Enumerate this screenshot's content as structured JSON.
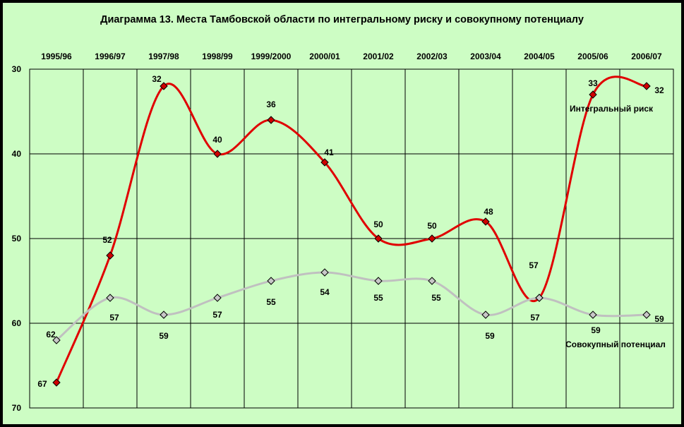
{
  "page_title": "Диаграмма 13. Места Тамбовской области  по интегральному риску и совокупному потенциалу",
  "colors": {
    "background": "#cdfdc4",
    "risk_line": "#e00000",
    "potential_line": "#c0c0c0",
    "grid": "#000000"
  },
  "chart_data": {
    "type": "line",
    "title": "Диаграмма 13. Места Тамбовской области  по интегральному риску и совокупному потенциалу",
    "xlabel": "",
    "ylabel": "",
    "categories": [
      "1995/96",
      "1996/97",
      "1997/98",
      "1998/99",
      "1999/2000",
      "2000/01",
      "2001/02",
      "2002/03",
      "2003/04",
      "2004/05",
      "2005/06",
      "2006/07"
    ],
    "y_axis": {
      "ticks": [
        "30",
        "40",
        "50",
        "60",
        "70"
      ],
      "ylim": [
        30,
        70
      ],
      "inverted": true
    },
    "x_axis_position": "top",
    "grid": true,
    "series": [
      {
        "name": "Интегральный  риск",
        "values": [
          67,
          52,
          32,
          40,
          36,
          41,
          50,
          50,
          48,
          57,
          33,
          32
        ],
        "color": "#e00000",
        "marker": "diamond"
      },
      {
        "name": "Совокупный потенциал",
        "values": [
          62,
          57,
          59,
          57,
          55,
          54,
          55,
          55,
          59,
          57,
          59,
          59
        ],
        "color": "#c0c0c0",
        "marker": "diamond"
      }
    ]
  }
}
